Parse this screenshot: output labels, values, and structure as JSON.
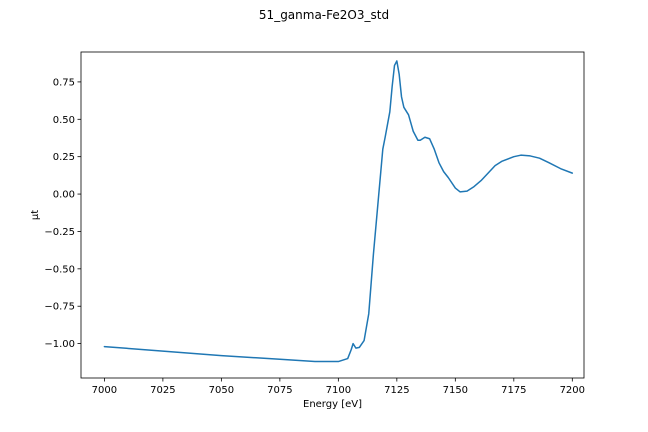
{
  "chart_data": {
    "type": "line",
    "title": "51_ganma-Fe2O3_std",
    "xlabel": "Energy [eV]",
    "ylabel": "μt",
    "xlim": [
      6990,
      7205
    ],
    "ylim": [
      -1.23,
      0.95
    ],
    "x_ticks": [
      7000,
      7025,
      7050,
      7075,
      7100,
      7125,
      7150,
      7175,
      7200
    ],
    "x_tick_labels": [
      "7000",
      "7025",
      "7050",
      "7075",
      "7100",
      "7125",
      "7150",
      "7175",
      "7200"
    ],
    "y_ticks": [
      0.75,
      0.5,
      0.25,
      0.0,
      -0.25,
      -0.5,
      -0.75,
      -1.0
    ],
    "y_tick_labels": [
      "0.75",
      "0.50",
      "0.25",
      "0.00",
      "−0.25",
      "−0.50",
      "−0.75",
      "−1.00"
    ],
    "grid": false,
    "series": [
      {
        "color": "#1f77b4",
        "x": [
          7000,
          7025,
          7050,
          7075,
          7090,
          7100,
          7104,
          7105.5,
          7106.3,
          7107.5,
          7109,
          7111,
          7113,
          7115,
          7117,
          7119,
          7120,
          7122,
          7123,
          7124,
          7125,
          7126,
          7127,
          7128,
          7130,
          7132,
          7134,
          7135,
          7137,
          7139,
          7141,
          7143,
          7145,
          7147,
          7150,
          7152,
          7155,
          7158,
          7161,
          7164,
          7167,
          7170,
          7175,
          7178,
          7182,
          7186,
          7190,
          7195,
          7200
        ],
        "y": [
          -1.02,
          -1.05,
          -1.08,
          -1.105,
          -1.12,
          -1.12,
          -1.1,
          -1.04,
          -1.0,
          -1.03,
          -1.025,
          -0.98,
          -0.8,
          -0.4,
          -0.05,
          0.3,
          0.38,
          0.55,
          0.72,
          0.86,
          0.89,
          0.8,
          0.65,
          0.58,
          0.53,
          0.42,
          0.36,
          0.36,
          0.38,
          0.37,
          0.3,
          0.21,
          0.15,
          0.11,
          0.04,
          0.015,
          0.02,
          0.05,
          0.09,
          0.14,
          0.19,
          0.22,
          0.25,
          0.26,
          0.255,
          0.24,
          0.21,
          0.17,
          0.14
        ]
      }
    ]
  }
}
